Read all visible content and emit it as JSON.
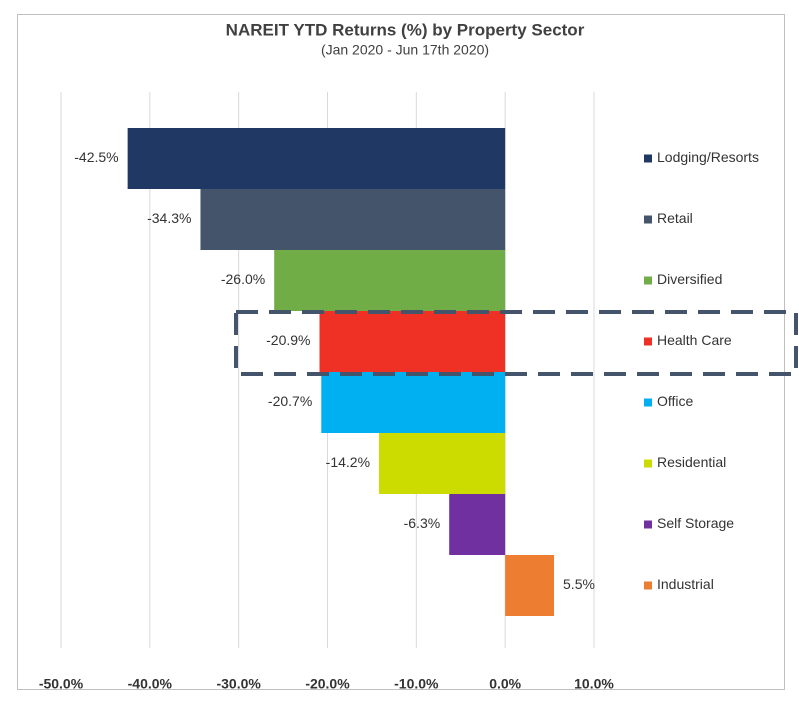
{
  "chart_data": {
    "type": "bar",
    "orientation": "horizontal",
    "title": "NAREIT  YTD Returns (%) by Property Sector",
    "subtitle": "(Jan 2020 - Jun 17th 2020)",
    "categories": [
      "Lodging/Resorts",
      "Retail",
      "Diversified",
      "Health Care",
      "Office",
      "Residential",
      "Self Storage",
      "Industrial"
    ],
    "values": [
      -42.5,
      -34.3,
      -26.0,
      -20.9,
      -20.7,
      -14.2,
      -6.3,
      5.5
    ],
    "value_labels": [
      "-42.5%",
      "-34.3%",
      "-26.0%",
      "-20.9%",
      "-20.7%",
      "-14.2%",
      "-6.3%",
      "5.5%"
    ],
    "colors": [
      "#1f3864",
      "#44546a",
      "#70ad47",
      "#ee3124",
      "#00b0f0",
      "#ccdc00",
      "#7030a0",
      "#ed7d31"
    ],
    "xlim": [
      -50,
      10
    ],
    "xticks": [
      {
        "value": -50,
        "label": "-50.0%"
      },
      {
        "value": -40,
        "label": "-40.0%"
      },
      {
        "value": -30,
        "label": "-30.0%"
      },
      {
        "value": -20,
        "label": "-20.0%"
      },
      {
        "value": -10,
        "label": "-10.0%"
      },
      {
        "value": 0,
        "label": "0.0%"
      },
      {
        "value": 10,
        "label": "10.0%"
      }
    ],
    "grid": true
  }
}
